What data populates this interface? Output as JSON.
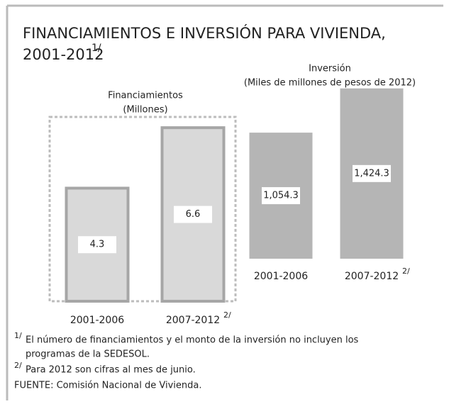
{
  "title": {
    "text": "FINANCIAMIENTOS E INVERSIÓN PARA VIVIENDA,",
    "text2": "2001-2012",
    "note": "1/"
  },
  "chart_data": [
    {
      "type": "bar",
      "title": "Financiamientos",
      "subtitle": "(Millones)",
      "categories": [
        "2001-2006",
        "2007-2012"
      ],
      "category_notes": [
        null,
        "2/"
      ],
      "values": [
        4.3,
        6.6
      ],
      "color": "#d9d9d9",
      "edge_color": "#a6a6a6"
    },
    {
      "type": "bar",
      "title": "Inversión",
      "subtitle": "(Miles de millones de pesos de 2012)",
      "categories": [
        "2001-2006",
        "2007-2012"
      ],
      "category_notes": [
        null,
        "2/"
      ],
      "values": [
        1054.3,
        1424.3
      ],
      "value_labels": [
        "1,054.3",
        "1,424.3"
      ],
      "color": "#b5b5b5",
      "edge_color": "#b5b5b5"
    }
  ],
  "footnotes": [
    {
      "mark": "1/",
      "text": "El número de financiamientos y el monto de la inversión  no incluyen los",
      "text2": "programas de la SEDESOL."
    },
    {
      "mark": "2/",
      "text": "Para 2012 son cifras al mes de junio."
    }
  ],
  "source": "FUENTE: Comisión Nacional de Vivienda."
}
